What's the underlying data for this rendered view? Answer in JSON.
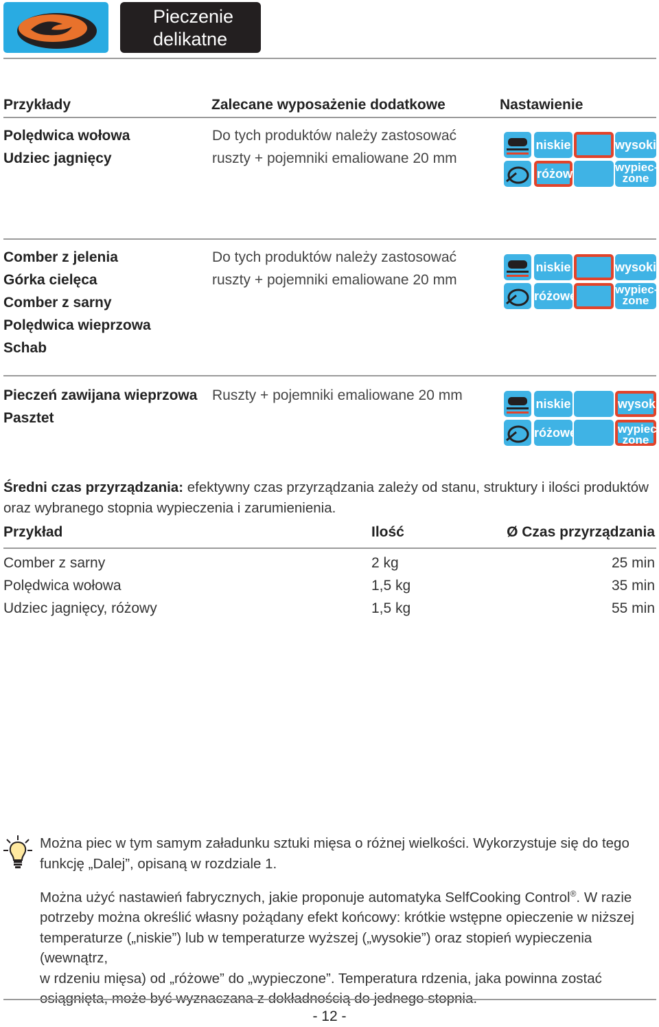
{
  "header": {
    "title": "Pieczenie delikatne"
  },
  "columns": {
    "examples": "Przykłady",
    "accessories": "Zalecane wyposażenie dodatkowe",
    "setting": "Nastawienie"
  },
  "labels": {
    "low": "niskie",
    "high": "wysokie",
    "pink": "różowe",
    "welldone": "wypiec-zone"
  },
  "rows": [
    {
      "products": [
        "Polędwica wołowa",
        "Udziec jagnięcy"
      ],
      "accessory": [
        "Do tych produktów należy zastosować",
        "ruszty + pojemniki emaliowane 20 mm"
      ],
      "setting": {
        "temp_selected": "middle",
        "doneness_selected": "pink"
      }
    },
    {
      "products": [
        "Comber z jelenia",
        "Górka cielęca",
        "Comber z sarny",
        "Polędwica wieprzowa",
        "Schab"
      ],
      "accessory": [
        "Do tych produktów należy zastosować",
        "ruszty + pojemniki emaliowane 20 mm"
      ],
      "setting": {
        "temp_selected": "middle",
        "doneness_selected": "middle"
      }
    },
    {
      "products": [
        "Pieczeń zawijana wieprzowa",
        "Pasztet"
      ],
      "accessory": [
        "Ruszty + pojemniki emaliowane 20 mm"
      ],
      "setting": {
        "temp_selected": "high",
        "doneness_selected": "welldone"
      }
    }
  ],
  "avg_time": {
    "label": "Średni czas przyrządzania:",
    "text_1": " efektywny czas przyrządzania zależy od stanu, struktury i ilości produktów",
    "text_2": "oraz wybranego stopnia wypieczenia i zarumienienia."
  },
  "time_table": {
    "headers": [
      "Przykład",
      "Ilość",
      "Ø Czas przyrządzania"
    ],
    "rows": [
      [
        "Comber z sarny",
        "2 kg",
        "25 min"
      ],
      [
        "Polędwica wołowa",
        "1,5 kg",
        "35 min"
      ],
      [
        "Udziec jagnięcy, różowy",
        "1,5 kg",
        "55 min"
      ]
    ]
  },
  "tip": {
    "line_1": "Można piec w tym samym załadunku sztuki mięsa o różnej wielkości. Wykorzystuje się do tego",
    "line_2": "funkcję „Dalej”, opisaną w rozdziale 1."
  },
  "note": {
    "line_1a": "Można użyć nastawień fabrycznych, jakie proponuje automatyka SelfCooking Control",
    "reg_mark": "®",
    "line_1b": ". W razie",
    "line_2": "potrzeby można określić własny pożądany efekt końcowy: krótkie wstępne opieczenie w niższej",
    "line_3": "temperaturze („niskie”) lub w temperaturze wyższej („wysokie”) oraz stopień wypieczenia (wewnątrz,",
    "line_4": "w rdzeniu mięsa) od „różowe” do „wypieczone”.  Temperatura rdzenia, jaka powinna zostać",
    "line_5": "osiągnięta, może być wyznaczana z dokładnością do jednego stopnia."
  },
  "page_number": "- 12 -",
  "colors": {
    "accent_blue": "#29abe2",
    "select_red": "#e2432a",
    "logo_orange": "#e8722c",
    "title_bg": "#231f20"
  }
}
